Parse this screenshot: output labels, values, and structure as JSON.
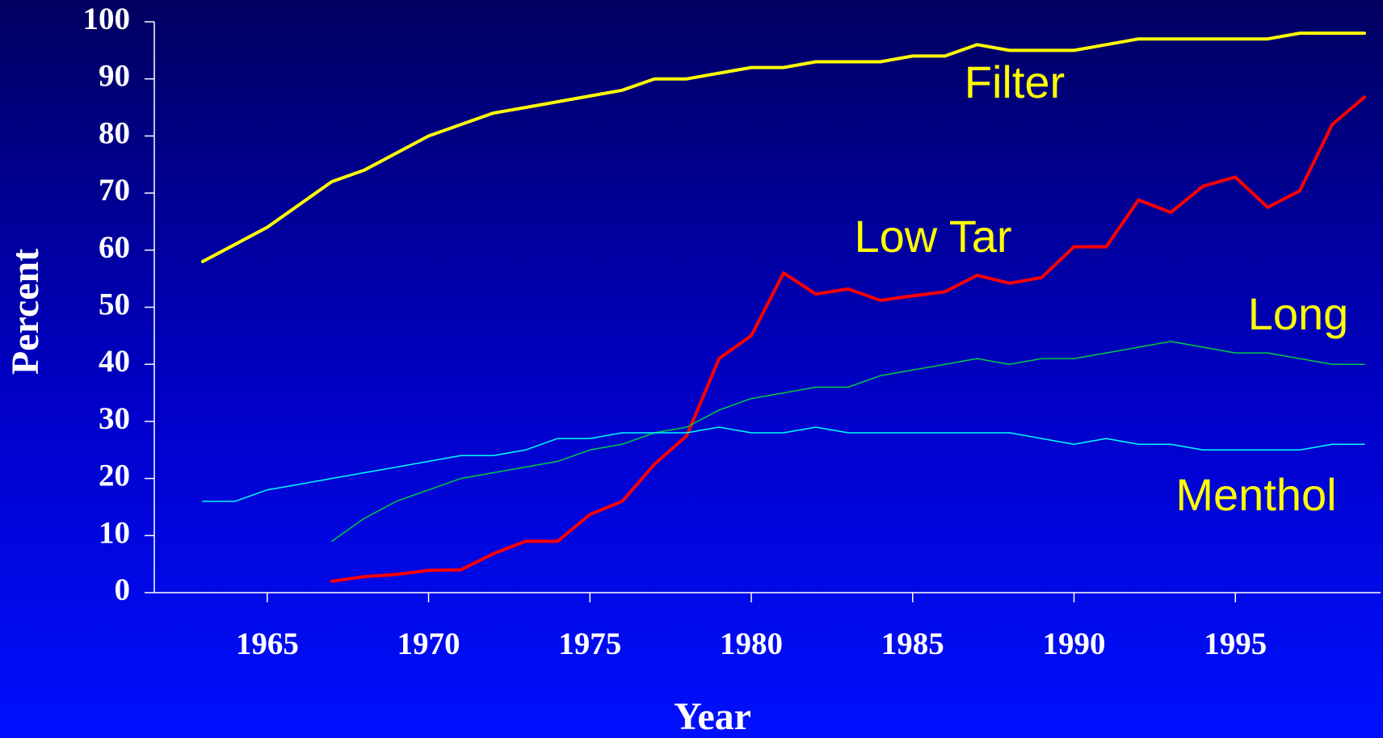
{
  "chart_data": {
    "type": "line",
    "x_label": "Year",
    "y_label": "Percent",
    "x": [
      1963,
      1964,
      1965,
      1966,
      1967,
      1968,
      1969,
      1970,
      1971,
      1972,
      1973,
      1974,
      1975,
      1976,
      1977,
      1978,
      1979,
      1980,
      1981,
      1982,
      1983,
      1984,
      1985,
      1986,
      1987,
      1988,
      1989,
      1990,
      1991,
      1992,
      1993,
      1994,
      1995,
      1996,
      1997,
      1998,
      1999
    ],
    "xlim": [
      1961.5,
      1999.5
    ],
    "xticks": [
      1965,
      1970,
      1975,
      1980,
      1985,
      1990,
      1995
    ],
    "ylim": [
      0,
      100
    ],
    "yticks": [
      0,
      10,
      20,
      30,
      40,
      50,
      60,
      70,
      80,
      90,
      100
    ],
    "label_color": "#ffff00",
    "series": [
      {
        "name": "Filter",
        "color": "#ffff00",
        "line_width": 4,
        "values": [
          58,
          61,
          64,
          68,
          72,
          74,
          77,
          80,
          82,
          84,
          85,
          86,
          87,
          88,
          90,
          90,
          91,
          92,
          92,
          93,
          93,
          93,
          94,
          94,
          96,
          95,
          95,
          95,
          96,
          97,
          97,
          97,
          97,
          97,
          98,
          98,
          98
        ]
      },
      {
        "name": "Low Tar",
        "color": "#ff0000",
        "line_width": 4,
        "values": [
          null,
          null,
          null,
          null,
          2,
          2.8,
          3.2,
          3.9,
          4,
          6.8,
          9,
          9,
          13.7,
          16,
          22.5,
          27.5,
          41,
          45,
          56,
          52.3,
          53.2,
          51.2,
          52,
          52.7,
          55.6,
          54.2,
          55.2,
          60.6,
          60.6,
          68.8,
          66.6,
          71.2,
          72.8,
          67.5,
          70.4,
          82,
          86.8
        ]
      },
      {
        "name": "Long",
        "color": "#00cc44",
        "line_width": 1.5,
        "values": [
          null,
          null,
          null,
          null,
          9,
          13,
          16,
          18,
          20,
          21,
          22,
          23,
          25,
          26,
          28,
          29,
          32,
          34,
          35,
          36,
          36,
          38,
          39,
          40,
          41,
          40,
          41,
          41,
          42,
          43,
          44,
          43,
          42,
          42,
          41,
          40,
          40
        ]
      },
      {
        "name": "Menthol",
        "color": "#00ffff",
        "line_width": 1.5,
        "values": [
          16,
          16,
          18,
          19,
          20,
          21,
          22,
          23,
          24,
          24,
          25,
          27,
          27,
          28,
          28,
          28,
          29,
          28,
          28,
          29,
          28,
          28,
          28,
          28,
          28,
          28,
          27,
          26,
          27,
          26,
          26,
          25,
          25,
          25,
          25,
          26,
          26
        ]
      }
    ]
  }
}
